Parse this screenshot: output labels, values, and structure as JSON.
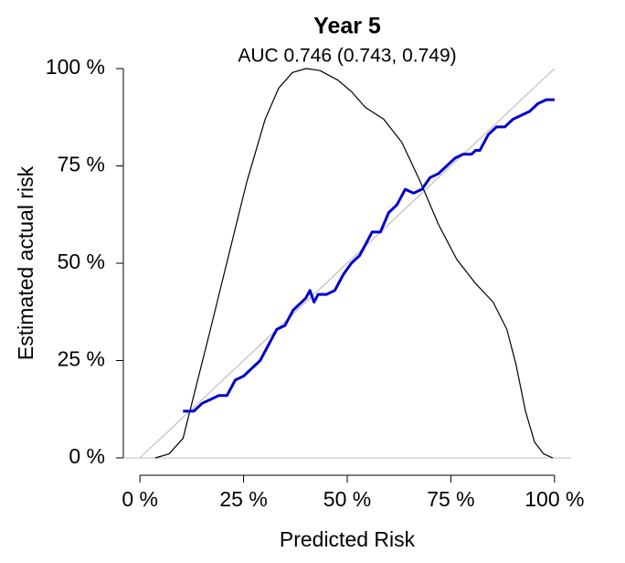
{
  "chart_data": {
    "type": "line",
    "title": "Year 5",
    "subtitle": "AUC 0.746 (0.743, 0.749)",
    "x_label": "Predicted Risk",
    "y_label": "Estimated actual risk",
    "xlim": [
      -4,
      104
    ],
    "ylim": [
      -4,
      104
    ],
    "xticks": [
      {
        "value": 0,
        "label": "0 %"
      },
      {
        "value": 25,
        "label": "25 %"
      },
      {
        "value": 50,
        "label": "50 %"
      },
      {
        "value": 75,
        "label": "75 %"
      },
      {
        "value": 100,
        "label": "100 %"
      }
    ],
    "yticks": [
      {
        "value": 0,
        "label": "0 %"
      },
      {
        "value": 25,
        "label": "25 %"
      },
      {
        "value": 50,
        "label": "50 %"
      },
      {
        "value": 75,
        "label": "75 %"
      },
      {
        "value": 100,
        "label": "100 %"
      }
    ],
    "series": [
      {
        "color": "#bebebe",
        "x": [
          0,
          100
        ],
        "values": [
          0,
          100
        ]
      },
      {
        "color": "#000000",
        "x": [
          3.7,
          7,
          10.4,
          13.7,
          17,
          21.4,
          25.8,
          30.2,
          33.5,
          36.8,
          40.1,
          43.4,
          47.8,
          51.1,
          54.4,
          58.8,
          63.2,
          67.6,
          72,
          76.4,
          80.8,
          85.2,
          88.5,
          90.7,
          93,
          95.2,
          97.4,
          99.6
        ],
        "values": [
          0,
          1,
          5,
          19,
          33,
          52,
          71,
          87,
          95,
          99,
          100,
          99.5,
          97,
          94,
          90,
          87,
          81,
          71,
          60,
          51,
          45,
          40,
          33,
          24,
          12,
          4,
          1,
          0
        ]
      },
      {
        "color": "#0000cd",
        "x": [
          10.4,
          13,
          15,
          17,
          19,
          21,
          23,
          25,
          27,
          29,
          31,
          33,
          35,
          37,
          39,
          40,
          41,
          42,
          43,
          45,
          47,
          49,
          51,
          53,
          55,
          56,
          58,
          60,
          62,
          64,
          66,
          68,
          70,
          72,
          74,
          76,
          78,
          80,
          81,
          82,
          84,
          86,
          88,
          90,
          92,
          94,
          96,
          98,
          100
        ],
        "values": [
          12,
          12,
          14,
          15,
          16,
          16,
          20,
          21,
          23,
          25,
          29,
          33,
          34,
          38,
          40,
          41,
          43,
          40,
          42,
          42,
          43,
          47,
          50,
          52,
          56,
          58,
          58,
          63,
          65,
          69,
          68,
          69,
          72,
          73,
          75,
          77,
          78,
          78,
          79,
          79,
          83,
          85,
          85,
          87,
          88,
          89,
          91,
          92,
          92
        ]
      }
    ]
  }
}
